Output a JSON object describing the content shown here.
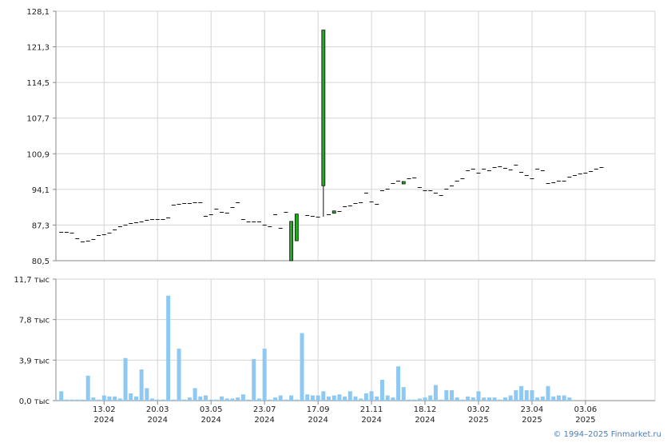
{
  "credit": "© 1994–2025 Finmarket.ru",
  "colors": {
    "grid": "#d4d4d4",
    "axis": "#888888",
    "up": "#1faa1f",
    "down": "#7a1010",
    "volume": "#8ec9f4"
  },
  "chart_data": [
    {
      "type": "candlestick",
      "ylim": [
        80.5,
        128.1
      ],
      "y_ticks": [
        "128,1",
        "121,3",
        "114,5",
        "107,7",
        "100,9",
        "94,1",
        "87,3",
        "80,5"
      ],
      "grid": true,
      "x_index_range": [
        0,
        112
      ],
      "flat_points": [
        {
          "i": 1,
          "v": 86.0
        },
        {
          "i": 2,
          "v": 86.0
        },
        {
          "i": 3,
          "v": 85.8
        },
        {
          "i": 4,
          "v": 84.8
        },
        {
          "i": 5,
          "v": 84.2
        },
        {
          "i": 6,
          "v": 84.3
        },
        {
          "i": 7,
          "v": 84.6
        },
        {
          "i": 8,
          "v": 85.4
        },
        {
          "i": 9,
          "v": 85.6
        },
        {
          "i": 10,
          "v": 85.9
        },
        {
          "i": 11,
          "v": 86.4
        },
        {
          "i": 12,
          "v": 87.0
        },
        {
          "i": 13,
          "v": 87.3
        },
        {
          "i": 14,
          "v": 87.6
        },
        {
          "i": 15,
          "v": 87.8
        },
        {
          "i": 16,
          "v": 87.9
        },
        {
          "i": 17,
          "v": 88.3
        },
        {
          "i": 18,
          "v": 88.4
        },
        {
          "i": 19,
          "v": 88.5
        },
        {
          "i": 20,
          "v": 88.5
        },
        {
          "i": 21,
          "v": 88.8
        },
        {
          "i": 22,
          "v": 91.2
        },
        {
          "i": 23,
          "v": 91.3
        },
        {
          "i": 24,
          "v": 91.5
        },
        {
          "i": 25,
          "v": 91.5
        },
        {
          "i": 26,
          "v": 91.6
        },
        {
          "i": 27,
          "v": 91.6
        },
        {
          "i": 28,
          "v": 89.0
        },
        {
          "i": 29,
          "v": 89.4
        },
        {
          "i": 30,
          "v": 90.4
        },
        {
          "i": 31,
          "v": 89.8
        },
        {
          "i": 32,
          "v": 89.7
        },
        {
          "i": 33,
          "v": 90.7
        },
        {
          "i": 34,
          "v": 91.6
        },
        {
          "i": 35,
          "v": 88.4
        },
        {
          "i": 36,
          "v": 88.0
        },
        {
          "i": 37,
          "v": 88.0
        },
        {
          "i": 38,
          "v": 88.0
        },
        {
          "i": 39,
          "v": 87.3
        },
        {
          "i": 40,
          "v": 87.1
        },
        {
          "i": 41,
          "v": 89.4
        },
        {
          "i": 42,
          "v": 86.7
        },
        {
          "i": 43,
          "v": 89.8
        },
        {
          "i": 47,
          "v": 89.2
        },
        {
          "i": 48,
          "v": 89.1
        },
        {
          "i": 49,
          "v": 88.9
        },
        {
          "i": 51,
          "v": 89.3
        },
        {
          "i": 53,
          "v": 89.9
        },
        {
          "i": 54,
          "v": 90.8
        },
        {
          "i": 55,
          "v": 91.0
        },
        {
          "i": 56,
          "v": 91.5
        },
        {
          "i": 57,
          "v": 91.7
        },
        {
          "i": 58,
          "v": 93.5
        },
        {
          "i": 59,
          "v": 91.8
        },
        {
          "i": 60,
          "v": 91.4
        },
        {
          "i": 61,
          "v": 93.9
        },
        {
          "i": 62,
          "v": 94.2
        },
        {
          "i": 63,
          "v": 95.3
        },
        {
          "i": 64,
          "v": 95.8
        },
        {
          "i": 66,
          "v": 96.2
        },
        {
          "i": 67,
          "v": 96.3
        },
        {
          "i": 68,
          "v": 94.5
        },
        {
          "i": 69,
          "v": 94.0
        },
        {
          "i": 70,
          "v": 93.9
        },
        {
          "i": 71,
          "v": 93.5
        },
        {
          "i": 72,
          "v": 93.0
        },
        {
          "i": 73,
          "v": 94.2
        },
        {
          "i": 74,
          "v": 94.9
        },
        {
          "i": 75,
          "v": 95.7
        },
        {
          "i": 76,
          "v": 96.2
        },
        {
          "i": 77,
          "v": 97.8
        },
        {
          "i": 78,
          "v": 98.1
        },
        {
          "i": 79,
          "v": 97.3
        },
        {
          "i": 80,
          "v": 98.0
        },
        {
          "i": 81,
          "v": 97.8
        },
        {
          "i": 82,
          "v": 98.3
        },
        {
          "i": 83,
          "v": 98.5
        },
        {
          "i": 84,
          "v": 98.2
        },
        {
          "i": 85,
          "v": 97.9
        },
        {
          "i": 86,
          "v": 98.8
        },
        {
          "i": 87,
          "v": 97.5
        },
        {
          "i": 88,
          "v": 96.9
        },
        {
          "i": 89,
          "v": 96.2
        },
        {
          "i": 90,
          "v": 98.1
        },
        {
          "i": 91,
          "v": 97.7
        },
        {
          "i": 92,
          "v": 95.3
        },
        {
          "i": 93,
          "v": 95.4
        },
        {
          "i": 94,
          "v": 95.7
        },
        {
          "i": 95,
          "v": 95.8
        },
        {
          "i": 96,
          "v": 96.5
        },
        {
          "i": 97,
          "v": 96.9
        },
        {
          "i": 98,
          "v": 97.2
        },
        {
          "i": 99,
          "v": 97.3
        },
        {
          "i": 100,
          "v": 97.6
        },
        {
          "i": 101,
          "v": 98.0
        },
        {
          "i": 102,
          "v": 98.4
        }
      ],
      "candles": [
        {
          "i": 44,
          "open": 80.5,
          "close": 88.0,
          "high": 88.0,
          "low": 80.5
        },
        {
          "i": 45,
          "open": 84.3,
          "close": 89.4,
          "high": 89.4,
          "low": 84.3
        },
        {
          "i": 50,
          "open": 94.8,
          "close": 124.5,
          "high": 124.5,
          "low": 88.9
        },
        {
          "i": 52,
          "open": 89.6,
          "close": 90.0,
          "high": 90.0,
          "low": 89.6
        },
        {
          "i": 65,
          "open": 95.2,
          "close": 95.6,
          "high": 95.6,
          "low": 95.2
        }
      ]
    },
    {
      "type": "bar",
      "name": "volume",
      "ylim": [
        0,
        11.7
      ],
      "y_ticks": [
        "11,7 тыс",
        "7,8 тыс",
        "3,9 тыс",
        "0,0 тыс"
      ],
      "grid": true,
      "x_ticks": [
        {
          "i": 9,
          "date": "13.02",
          "year": "2024"
        },
        {
          "i": 19,
          "date": "20.03",
          "year": "2024"
        },
        {
          "i": 29,
          "date": "03.05",
          "year": "2024"
        },
        {
          "i": 39,
          "date": "23.07",
          "year": "2024"
        },
        {
          "i": 49,
          "date": "17.09",
          "year": "2024"
        },
        {
          "i": 59,
          "date": "21.11",
          "year": "2024"
        },
        {
          "i": 69,
          "date": "18.12",
          "year": "2024"
        },
        {
          "i": 79,
          "date": "03.02",
          "year": "2025"
        },
        {
          "i": 89,
          "date": "23.04",
          "year": "2025"
        },
        {
          "i": 99,
          "date": "03.06",
          "year": "2025"
        }
      ],
      "values": [
        0.0,
        0.9,
        0.1,
        0.1,
        0.1,
        0.1,
        2.4,
        0.3,
        0.1,
        0.5,
        0.4,
        0.4,
        0.2,
        4.1,
        0.7,
        0.4,
        3.0,
        1.2,
        0.2,
        0.1,
        0.1,
        10.1,
        0.1,
        5.0,
        0.1,
        0.3,
        1.2,
        0.4,
        0.5,
        0.1,
        0.1,
        0.4,
        0.2,
        0.2,
        0.3,
        0.6,
        0.1,
        4.0,
        0.2,
        5.0,
        0.1,
        0.3,
        0.5,
        0.1,
        0.5,
        0.1,
        6.5,
        0.6,
        0.5,
        0.5,
        0.9,
        0.4,
        0.5,
        0.6,
        0.4,
        0.9,
        0.4,
        0.2,
        0.7,
        0.9,
        0.4,
        2.0,
        0.5,
        0.3,
        3.3,
        1.3,
        0.1,
        0.1,
        0.2,
        0.3,
        0.5,
        1.5,
        0.1,
        1.0,
        1.0,
        0.3,
        0.1,
        0.4,
        0.3,
        0.9,
        0.3,
        0.3,
        0.3,
        0.1,
        0.3,
        0.5,
        1.0,
        1.4,
        1.0,
        1.0,
        0.3,
        0.4,
        1.4,
        0.4,
        0.5,
        0.5,
        0.3
      ]
    }
  ]
}
